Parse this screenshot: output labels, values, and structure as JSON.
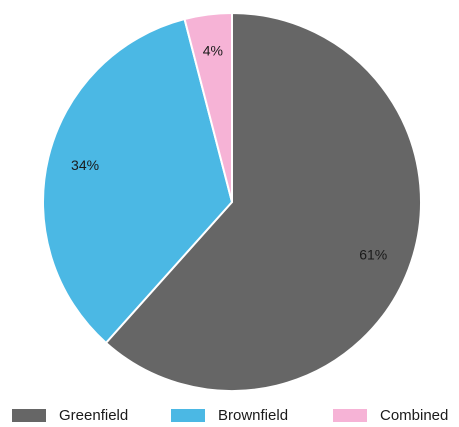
{
  "chart_data": {
    "type": "pie",
    "slices": [
      {
        "label": "Greenfield",
        "value": 61,
        "value_label": "61%",
        "color": "#666666"
      },
      {
        "label": "Brownfield",
        "value": 34,
        "value_label": "34%",
        "color": "#4bb8e4"
      },
      {
        "label": "Combined",
        "value": 4,
        "value_label": "4%",
        "color": "#f6b3d6"
      }
    ],
    "legend_position": "bottom",
    "start_angle": "top",
    "direction": "clockwise"
  }
}
